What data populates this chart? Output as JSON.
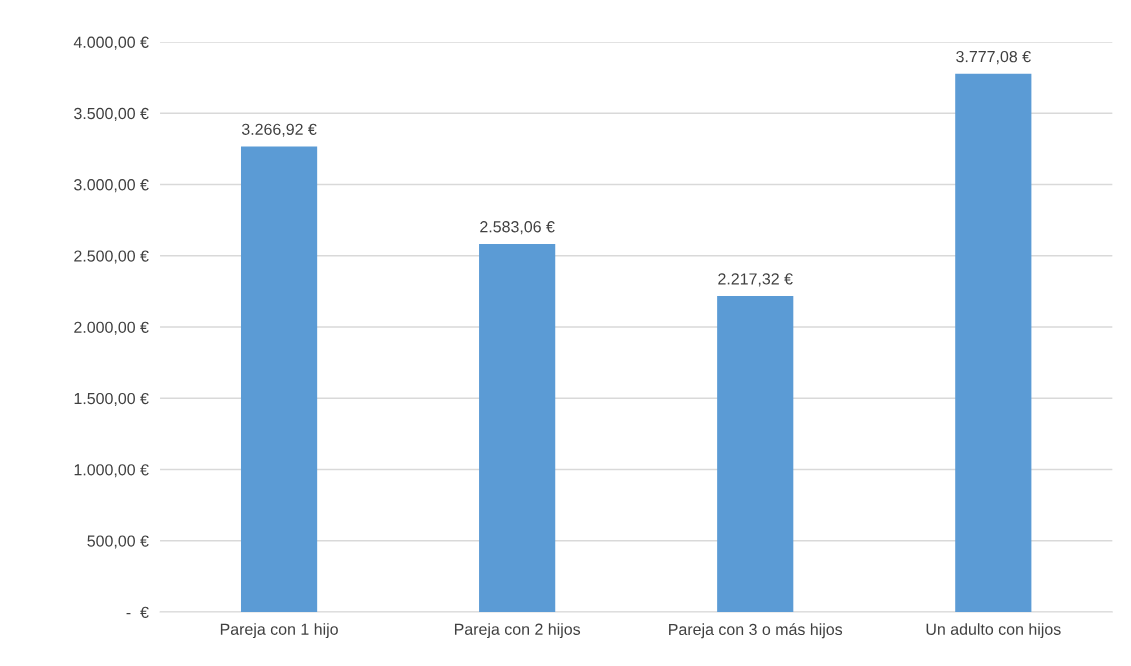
{
  "chart_data": {
    "type": "bar",
    "categories": [
      "Pareja con 1 hijo",
      "Pareja con 2 hijos",
      "Pareja con 3 o más hijos",
      "Un adulto con hijos"
    ],
    "values": [
      3266.92,
      2583.06,
      2217.32,
      3777.08
    ],
    "value_labels": [
      "3.266,92 €",
      "2.583,06 €",
      "2.217,32 €",
      "3.777,08 €"
    ],
    "color": "#5b9bd5",
    "ylim": [
      0,
      4000
    ],
    "yticks": [
      {
        "value": 0,
        "label": "-  €"
      },
      {
        "value": 500,
        "label": "500,00 €"
      },
      {
        "value": 1000,
        "label": "1.000,00 €"
      },
      {
        "value": 1500,
        "label": "1.500,00 €"
      },
      {
        "value": 2000,
        "label": "2.000,00 €"
      },
      {
        "value": 2500,
        "label": "2.500,00 €"
      },
      {
        "value": 3000,
        "label": "3.000,00 €"
      },
      {
        "value": 3500,
        "label": "3.500,00 €"
      },
      {
        "value": 4000,
        "label": "4.000,00 €"
      }
    ],
    "grid": "y",
    "legend": false
  }
}
